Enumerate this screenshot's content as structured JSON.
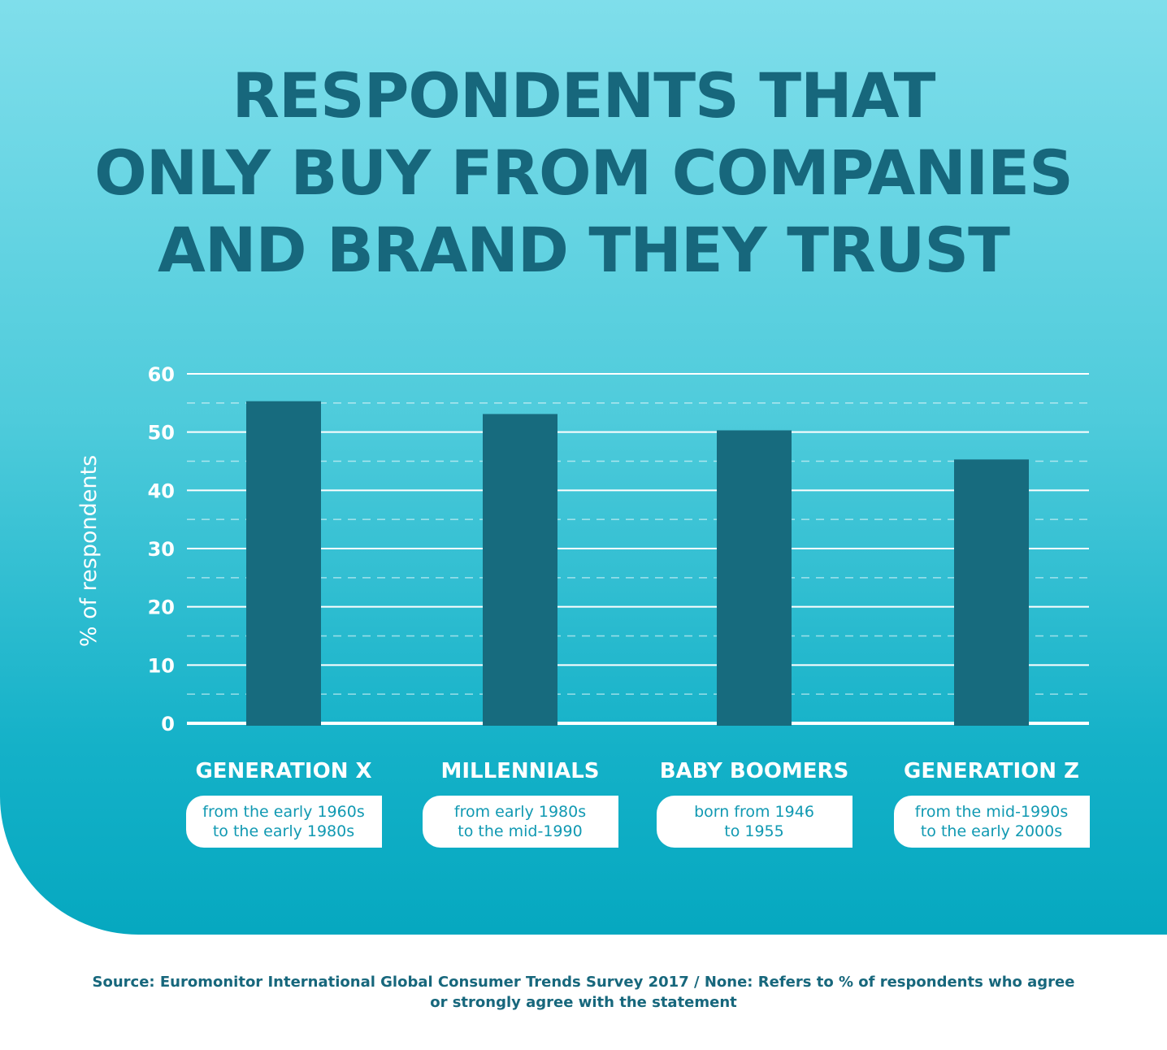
{
  "title": {
    "line1": "RESPONDENTS THAT",
    "line2": "ONLY BUY FROM COMPANIES",
    "line3": "AND BRAND THEY TRUST"
  },
  "chart_data": {
    "type": "bar",
    "title": "RESPONDENTS THAT ONLY BUY FROM COMPANIES AND BRAND THEY TRUST",
    "ylabel": "% of respondents",
    "xlabel": "",
    "ylim": [
      0,
      60
    ],
    "yticks": [
      0,
      10,
      20,
      30,
      40,
      50,
      60
    ],
    "grid": true,
    "categories": [
      "GENERATION X",
      "MILLENNIALS",
      "BABY BOOMERS",
      "GENERATION Z"
    ],
    "category_descriptions": [
      [
        "from the early 1960s",
        "to the early 1980s"
      ],
      [
        "from early 1980s",
        "to the mid-1990"
      ],
      [
        "born from 1946",
        "to 1955"
      ],
      [
        "from the mid-1990s",
        "to the early 2000s"
      ]
    ],
    "values": [
      55.3,
      53.1,
      50.3,
      45.3
    ],
    "colors": {
      "bar": "#176b7e",
      "grid": "#ffffff",
      "axis_text": "#ffffff"
    }
  },
  "footer": {
    "line1": "Source: Euromonitor International Global Consumer Trends Survey 2017   /   None: Refers to % of respondents who agree",
    "line2": "or strongly agree with the statement"
  }
}
